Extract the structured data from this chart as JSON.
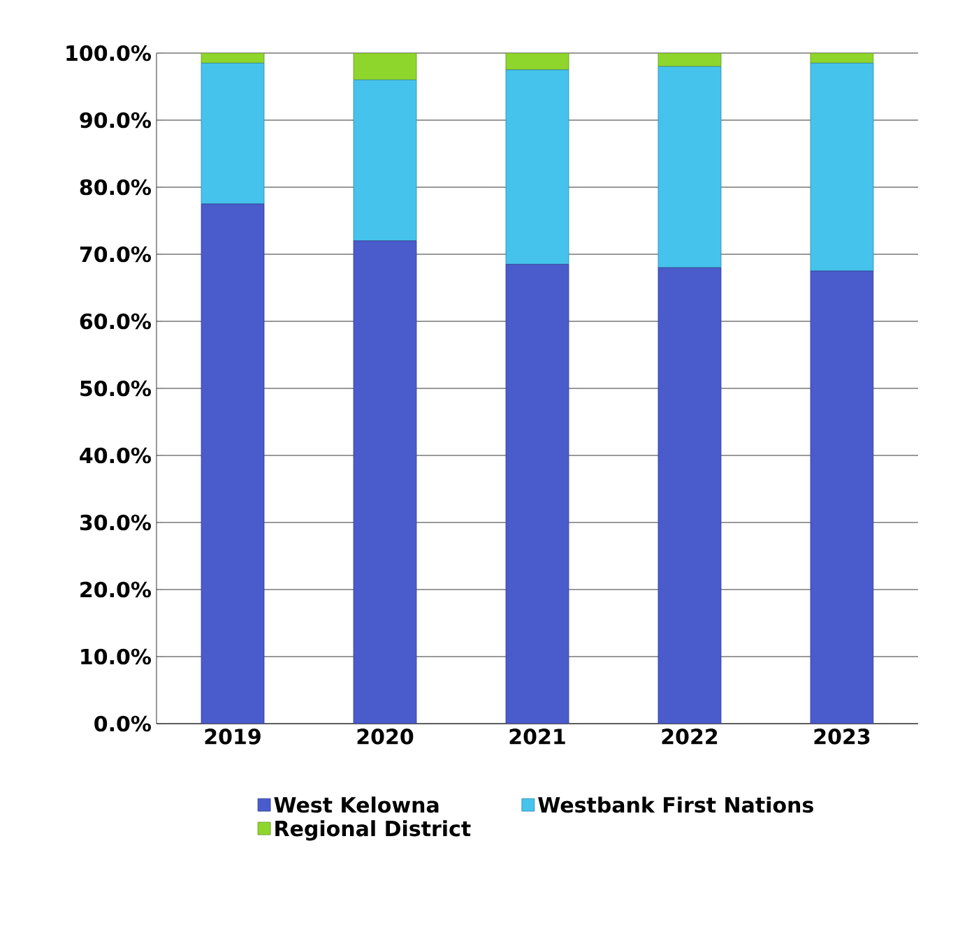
{
  "chart_data": {
    "type": "bar",
    "stacked": true,
    "categories": [
      "2019",
      "2020",
      "2021",
      "2022",
      "2023"
    ],
    "series": [
      {
        "name": "West Kelowna",
        "color": "#4a5bcc",
        "values": [
          77.5,
          72,
          68.5,
          68,
          67.5
        ]
      },
      {
        "name": "Westbank First Nations",
        "color": "#45c3ec",
        "values": [
          21,
          24,
          29,
          30,
          31
        ]
      },
      {
        "name": "Regional District",
        "color": "#8ed62c",
        "values": [
          1.5,
          4,
          2.5,
          2,
          1.5
        ]
      }
    ],
    "ylim": [
      0,
      100
    ],
    "yticks": [
      {
        "value": 0,
        "label": "0.0%"
      },
      {
        "value": 10,
        "label": "10.0%"
      },
      {
        "value": 20,
        "label": "20.0%"
      },
      {
        "value": 30,
        "label": "30.0%"
      },
      {
        "value": 40,
        "label": "40.0%"
      },
      {
        "value": 50,
        "label": "50.0%"
      },
      {
        "value": 60,
        "label": "60.0%"
      },
      {
        "value": 70,
        "label": "70.0%"
      },
      {
        "value": 80,
        "label": "80.0%"
      },
      {
        "value": 90,
        "label": "90.0%"
      },
      {
        "value": 100,
        "label": "100.0%"
      }
    ],
    "grid": "y",
    "legend": "bottom"
  }
}
